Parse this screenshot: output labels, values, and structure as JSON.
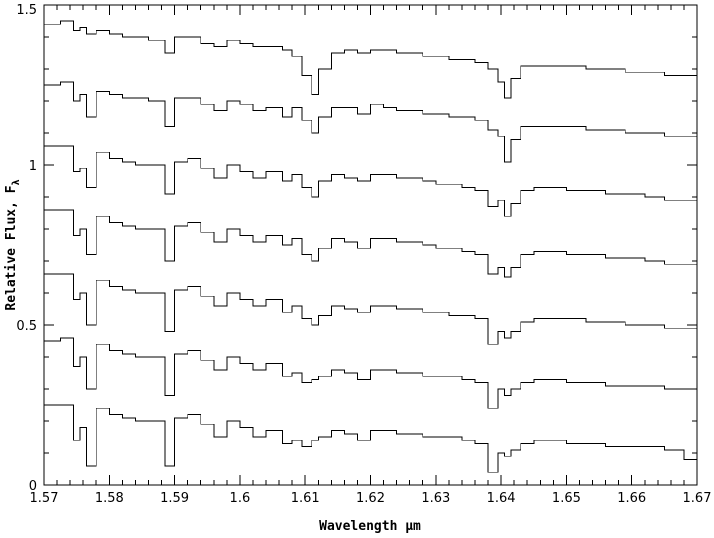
{
  "chart_data": {
    "type": "line",
    "title": "",
    "xlabel": "Wavelength μm",
    "ylabel": "Relative Flux, F",
    "ylabel_subscript": "λ",
    "xlim": [
      1.57,
      1.67
    ],
    "ylim": [
      0,
      1.5
    ],
    "grid": false,
    "legend": "none",
    "x_ticks": [
      1.57,
      1.58,
      1.59,
      1.6,
      1.61,
      1.62,
      1.63,
      1.64,
      1.65,
      1.66,
      1.67
    ],
    "x_tick_labels": [
      "1.57",
      "1.58",
      "1.59",
      "1.6",
      "1.61",
      "1.62",
      "1.63",
      "1.64",
      "1.65",
      "1.66",
      "1.67"
    ],
    "y_ticks": [
      0,
      0.5,
      1,
      1.5
    ],
    "y_tick_labels": [
      "0",
      "0.5",
      "1",
      "1.5"
    ],
    "line_color": "#000000",
    "series": [
      {
        "x": [
          1.57,
          1.5725,
          1.5745,
          1.5755,
          1.5765,
          1.578,
          1.58,
          1.582,
          1.584,
          1.586,
          1.5885,
          1.59,
          1.592,
          1.594,
          1.596,
          1.598,
          1.6,
          1.602,
          1.604,
          1.6065,
          1.608,
          1.6095,
          1.611,
          1.612,
          1.614,
          1.616,
          1.618,
          1.62,
          1.622,
          1.624,
          1.626,
          1.628,
          1.63,
          1.632,
          1.634,
          1.636,
          1.638,
          1.6395,
          1.6405,
          1.6415,
          1.643,
          1.645,
          1.647,
          1.65,
          1.653,
          1.656,
          1.659,
          1.662,
          1.665,
          1.668,
          1.67
        ],
        "y": [
          1.44,
          1.45,
          1.42,
          1.43,
          1.41,
          1.42,
          1.41,
          1.4,
          1.4,
          1.39,
          1.35,
          1.4,
          1.4,
          1.38,
          1.37,
          1.39,
          1.38,
          1.37,
          1.37,
          1.36,
          1.34,
          1.28,
          1.22,
          1.3,
          1.35,
          1.36,
          1.35,
          1.36,
          1.36,
          1.35,
          1.35,
          1.34,
          1.34,
          1.33,
          1.33,
          1.32,
          1.3,
          1.26,
          1.21,
          1.27,
          1.31,
          1.31,
          1.31,
          1.31,
          1.3,
          1.3,
          1.29,
          1.29,
          1.28,
          1.28,
          1.27
        ]
      },
      {
        "x": [
          1.57,
          1.5725,
          1.5745,
          1.5755,
          1.5765,
          1.578,
          1.58,
          1.582,
          1.584,
          1.586,
          1.5885,
          1.59,
          1.592,
          1.594,
          1.596,
          1.598,
          1.6,
          1.602,
          1.604,
          1.6065,
          1.608,
          1.6095,
          1.611,
          1.612,
          1.614,
          1.616,
          1.618,
          1.62,
          1.622,
          1.624,
          1.626,
          1.628,
          1.63,
          1.632,
          1.634,
          1.636,
          1.638,
          1.6395,
          1.6405,
          1.6415,
          1.643,
          1.645,
          1.647,
          1.65,
          1.653,
          1.656,
          1.659,
          1.662,
          1.665,
          1.668,
          1.67
        ],
        "y": [
          1.25,
          1.26,
          1.2,
          1.22,
          1.15,
          1.23,
          1.22,
          1.21,
          1.21,
          1.2,
          1.12,
          1.21,
          1.21,
          1.19,
          1.17,
          1.2,
          1.19,
          1.17,
          1.18,
          1.15,
          1.18,
          1.14,
          1.1,
          1.15,
          1.18,
          1.18,
          1.16,
          1.19,
          1.18,
          1.17,
          1.17,
          1.16,
          1.16,
          1.15,
          1.15,
          1.14,
          1.11,
          1.09,
          1.01,
          1.08,
          1.12,
          1.12,
          1.12,
          1.12,
          1.11,
          1.11,
          1.1,
          1.1,
          1.09,
          1.09,
          1.08
        ]
      },
      {
        "x": [
          1.57,
          1.5725,
          1.5745,
          1.5755,
          1.5765,
          1.578,
          1.58,
          1.582,
          1.584,
          1.586,
          1.5885,
          1.59,
          1.592,
          1.594,
          1.596,
          1.598,
          1.6,
          1.602,
          1.604,
          1.6065,
          1.608,
          1.6095,
          1.611,
          1.612,
          1.614,
          1.616,
          1.618,
          1.62,
          1.622,
          1.624,
          1.626,
          1.628,
          1.63,
          1.632,
          1.634,
          1.636,
          1.638,
          1.6395,
          1.6405,
          1.6415,
          1.643,
          1.645,
          1.647,
          1.65,
          1.653,
          1.656,
          1.659,
          1.662,
          1.665,
          1.668,
          1.67
        ],
        "y": [
          1.06,
          1.06,
          0.98,
          0.99,
          0.93,
          1.04,
          1.02,
          1.01,
          1.0,
          1.0,
          0.91,
          1.01,
          1.02,
          0.99,
          0.96,
          1.0,
          0.98,
          0.96,
          0.98,
          0.95,
          0.97,
          0.93,
          0.9,
          0.95,
          0.97,
          0.96,
          0.95,
          0.97,
          0.97,
          0.96,
          0.96,
          0.95,
          0.94,
          0.94,
          0.93,
          0.92,
          0.87,
          0.89,
          0.84,
          0.88,
          0.92,
          0.93,
          0.93,
          0.92,
          0.92,
          0.91,
          0.91,
          0.9,
          0.89,
          0.89,
          0.88
        ]
      },
      {
        "x": [
          1.57,
          1.5725,
          1.5745,
          1.5755,
          1.5765,
          1.578,
          1.58,
          1.582,
          1.584,
          1.586,
          1.5885,
          1.59,
          1.592,
          1.594,
          1.596,
          1.598,
          1.6,
          1.602,
          1.604,
          1.6065,
          1.608,
          1.6095,
          1.611,
          1.612,
          1.614,
          1.616,
          1.618,
          1.62,
          1.622,
          1.624,
          1.626,
          1.628,
          1.63,
          1.632,
          1.634,
          1.636,
          1.638,
          1.6395,
          1.6405,
          1.6415,
          1.643,
          1.645,
          1.647,
          1.65,
          1.653,
          1.656,
          1.659,
          1.662,
          1.665,
          1.668,
          1.67
        ],
        "y": [
          0.86,
          0.86,
          0.78,
          0.8,
          0.72,
          0.84,
          0.82,
          0.81,
          0.8,
          0.8,
          0.7,
          0.81,
          0.82,
          0.79,
          0.76,
          0.8,
          0.78,
          0.76,
          0.78,
          0.75,
          0.77,
          0.72,
          0.7,
          0.74,
          0.77,
          0.76,
          0.74,
          0.77,
          0.77,
          0.76,
          0.76,
          0.75,
          0.74,
          0.74,
          0.73,
          0.72,
          0.66,
          0.68,
          0.65,
          0.68,
          0.72,
          0.73,
          0.73,
          0.72,
          0.72,
          0.71,
          0.71,
          0.7,
          0.69,
          0.69,
          0.68
        ]
      },
      {
        "x": [
          1.57,
          1.5725,
          1.5745,
          1.5755,
          1.5765,
          1.578,
          1.58,
          1.582,
          1.584,
          1.586,
          1.5885,
          1.59,
          1.592,
          1.594,
          1.596,
          1.598,
          1.6,
          1.602,
          1.604,
          1.6065,
          1.608,
          1.6095,
          1.611,
          1.612,
          1.614,
          1.616,
          1.618,
          1.62,
          1.622,
          1.624,
          1.626,
          1.628,
          1.63,
          1.632,
          1.634,
          1.636,
          1.638,
          1.6395,
          1.6405,
          1.6415,
          1.643,
          1.645,
          1.647,
          1.65,
          1.653,
          1.656,
          1.659,
          1.662,
          1.665,
          1.668,
          1.67
        ],
        "y": [
          0.66,
          0.66,
          0.58,
          0.6,
          0.5,
          0.64,
          0.62,
          0.61,
          0.6,
          0.6,
          0.48,
          0.61,
          0.62,
          0.59,
          0.56,
          0.6,
          0.58,
          0.56,
          0.58,
          0.54,
          0.56,
          0.52,
          0.5,
          0.53,
          0.56,
          0.55,
          0.54,
          0.56,
          0.56,
          0.55,
          0.55,
          0.54,
          0.54,
          0.53,
          0.53,
          0.52,
          0.44,
          0.48,
          0.46,
          0.48,
          0.51,
          0.52,
          0.52,
          0.52,
          0.51,
          0.51,
          0.5,
          0.5,
          0.49,
          0.49,
          0.48
        ]
      },
      {
        "x": [
          1.57,
          1.5725,
          1.5745,
          1.5755,
          1.5765,
          1.578,
          1.58,
          1.582,
          1.584,
          1.586,
          1.5885,
          1.59,
          1.592,
          1.594,
          1.596,
          1.598,
          1.6,
          1.602,
          1.604,
          1.6065,
          1.608,
          1.6095,
          1.611,
          1.612,
          1.614,
          1.616,
          1.618,
          1.62,
          1.622,
          1.624,
          1.626,
          1.628,
          1.63,
          1.632,
          1.634,
          1.636,
          1.638,
          1.6395,
          1.6405,
          1.6415,
          1.643,
          1.645,
          1.647,
          1.65,
          1.653,
          1.656,
          1.659,
          1.662,
          1.665,
          1.668,
          1.67
        ],
        "y": [
          0.45,
          0.46,
          0.37,
          0.4,
          0.3,
          0.44,
          0.42,
          0.41,
          0.4,
          0.4,
          0.28,
          0.41,
          0.42,
          0.39,
          0.36,
          0.4,
          0.38,
          0.36,
          0.38,
          0.34,
          0.35,
          0.32,
          0.33,
          0.34,
          0.36,
          0.35,
          0.33,
          0.36,
          0.36,
          0.35,
          0.35,
          0.34,
          0.34,
          0.34,
          0.33,
          0.32,
          0.24,
          0.3,
          0.28,
          0.3,
          0.32,
          0.33,
          0.33,
          0.32,
          0.32,
          0.31,
          0.31,
          0.31,
          0.3,
          0.3,
          0.29
        ]
      },
      {
        "x": [
          1.57,
          1.5725,
          1.5745,
          1.5755,
          1.5765,
          1.578,
          1.58,
          1.582,
          1.584,
          1.586,
          1.5885,
          1.59,
          1.592,
          1.594,
          1.596,
          1.598,
          1.6,
          1.602,
          1.604,
          1.6065,
          1.608,
          1.6095,
          1.611,
          1.612,
          1.614,
          1.616,
          1.618,
          1.62,
          1.622,
          1.624,
          1.626,
          1.628,
          1.63,
          1.632,
          1.634,
          1.636,
          1.638,
          1.6395,
          1.6405,
          1.6415,
          1.643,
          1.645,
          1.647,
          1.65,
          1.653,
          1.656,
          1.659,
          1.662,
          1.665,
          1.668,
          1.67
        ],
        "y": [
          0.25,
          0.25,
          0.14,
          0.18,
          0.06,
          0.24,
          0.22,
          0.21,
          0.2,
          0.2,
          0.06,
          0.21,
          0.22,
          0.19,
          0.15,
          0.2,
          0.18,
          0.15,
          0.17,
          0.13,
          0.14,
          0.12,
          0.14,
          0.15,
          0.17,
          0.16,
          0.14,
          0.17,
          0.17,
          0.16,
          0.16,
          0.15,
          0.15,
          0.15,
          0.14,
          0.13,
          0.04,
          0.1,
          0.09,
          0.11,
          0.13,
          0.14,
          0.14,
          0.13,
          0.13,
          0.12,
          0.12,
          0.12,
          0.11,
          0.08,
          0.11
        ]
      }
    ]
  }
}
